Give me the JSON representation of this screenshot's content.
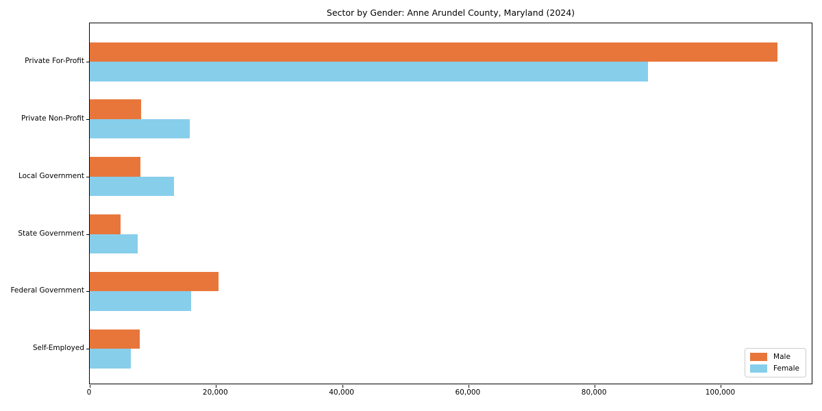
{
  "chart_data": {
    "type": "bar",
    "orientation": "horizontal",
    "title": "Sector by Gender: Anne Arundel County, Maryland (2024)",
    "categories": [
      "Private For-Profit",
      "Private Non-Profit",
      "Local Government",
      "State Government",
      "Federal Government",
      "Self-Employed"
    ],
    "series": [
      {
        "name": "Male",
        "color": "#e8763b",
        "values": [
          109000,
          8100,
          8000,
          4900,
          20400,
          7900
        ]
      },
      {
        "name": "Female",
        "color": "#87ceeb",
        "values": [
          88500,
          15800,
          13300,
          7600,
          16100,
          6500
        ]
      }
    ],
    "xlabel": "",
    "ylabel": "",
    "xlim": [
      0,
      114600
    ],
    "x_ticks": [
      0,
      20000,
      40000,
      60000,
      80000,
      100000
    ],
    "x_tick_labels": [
      "0",
      "20,000",
      "40,000",
      "60,000",
      "80,000",
      "100,000"
    ],
    "grid": false,
    "legend_position": "lower right",
    "colors": {
      "spine": "#000000",
      "legend_border": "#cccccc",
      "background": "#ffffff"
    }
  }
}
